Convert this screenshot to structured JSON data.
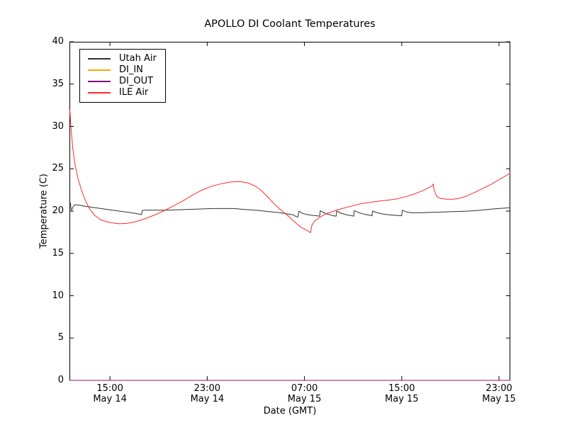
{
  "chart_data": {
    "type": "line",
    "title": "APOLLO DI Coolant Temperatures",
    "xlabel": "Date (GMT)",
    "ylabel": "Temperature (C)",
    "xlim": [
      11.67,
      47.93
    ],
    "ylim": [
      0,
      40
    ],
    "x_unit": "hours since May 14 00:00 GMT",
    "grid": false,
    "legend_position": "upper left",
    "yticks": [
      0,
      5,
      10,
      15,
      20,
      25,
      30,
      35,
      40
    ],
    "xticks": [
      {
        "pos": 15,
        "time": "15:00",
        "date": "May 14"
      },
      {
        "pos": 23,
        "time": "23:00",
        "date": "May 14"
      },
      {
        "pos": 31,
        "time": "07:00",
        "date": "May 15"
      },
      {
        "pos": 39,
        "time": "15:00",
        "date": "May 15"
      },
      {
        "pos": 47,
        "time": "23:00",
        "date": "May 15"
      }
    ],
    "series": [
      {
        "name": "Utah Air",
        "color": "#303030",
        "opacity": 1,
        "points": [
          [
            11.67,
            20.9
          ],
          [
            11.75,
            20.95
          ],
          [
            11.8,
            20.3
          ],
          [
            11.85,
            20.1
          ],
          [
            11.95,
            20.45
          ],
          [
            12.1,
            20.75
          ],
          [
            12.5,
            20.7
          ],
          [
            13.0,
            20.55
          ],
          [
            13.5,
            20.45
          ],
          [
            14.0,
            20.35
          ],
          [
            14.5,
            20.25
          ],
          [
            15.0,
            20.15
          ],
          [
            15.5,
            20.05
          ],
          [
            16.0,
            19.95
          ],
          [
            16.5,
            19.85
          ],
          [
            17.0,
            19.75
          ],
          [
            17.4,
            19.65
          ],
          [
            17.6,
            19.6
          ],
          [
            17.65,
            20.05
          ],
          [
            17.8,
            20.1
          ],
          [
            18.5,
            20.1
          ],
          [
            19.5,
            20.1
          ],
          [
            20.5,
            20.15
          ],
          [
            21.5,
            20.2
          ],
          [
            22.5,
            20.25
          ],
          [
            23.5,
            20.3
          ],
          [
            24.5,
            20.3
          ],
          [
            25.2,
            20.3
          ],
          [
            26.0,
            20.2
          ],
          [
            27.0,
            20.1
          ],
          [
            28.0,
            19.95
          ],
          [
            29.0,
            19.8
          ],
          [
            29.7,
            19.65
          ],
          [
            30.1,
            19.55
          ],
          [
            30.3,
            19.35
          ],
          [
            30.45,
            19.3
          ],
          [
            30.55,
            20.0
          ],
          [
            30.8,
            19.75
          ],
          [
            31.2,
            19.6
          ],
          [
            31.6,
            19.5
          ],
          [
            32.0,
            19.45
          ],
          [
            32.25,
            19.4
          ],
          [
            32.3,
            20.05
          ],
          [
            32.6,
            19.8
          ],
          [
            33.0,
            19.6
          ],
          [
            33.4,
            19.45
          ],
          [
            33.6,
            19.4
          ],
          [
            33.65,
            20.0
          ],
          [
            34.0,
            19.75
          ],
          [
            34.5,
            19.55
          ],
          [
            34.9,
            19.45
          ],
          [
            35.05,
            19.4
          ],
          [
            35.1,
            20.05
          ],
          [
            35.5,
            19.8
          ],
          [
            36.0,
            19.6
          ],
          [
            36.4,
            19.5
          ],
          [
            36.55,
            19.45
          ],
          [
            36.6,
            20.0
          ],
          [
            37.0,
            19.8
          ],
          [
            37.5,
            19.65
          ],
          [
            38.0,
            19.55
          ],
          [
            38.5,
            19.5
          ],
          [
            39.0,
            19.45
          ],
          [
            39.05,
            20.1
          ],
          [
            39.4,
            19.9
          ],
          [
            39.8,
            19.8
          ],
          [
            40.5,
            19.8
          ],
          [
            41.5,
            19.85
          ],
          [
            42.5,
            19.9
          ],
          [
            43.5,
            19.95
          ],
          [
            44.5,
            20.0
          ],
          [
            45.5,
            20.1
          ],
          [
            46.5,
            20.25
          ],
          [
            47.5,
            20.35
          ],
          [
            47.93,
            20.4
          ]
        ]
      },
      {
        "name": "DI_IN",
        "color": "#ffa500",
        "opacity": 0.9,
        "points": [
          [
            11.67,
            0
          ],
          [
            47.93,
            0
          ]
        ]
      },
      {
        "name": "DI_OUT",
        "color": "#800080",
        "opacity": 0.85,
        "points": [
          [
            11.67,
            0
          ],
          [
            47.93,
            0
          ]
        ]
      },
      {
        "name": "ILE Air",
        "color": "#ff2a2a",
        "opacity": 1,
        "points": [
          [
            11.7,
            32.0
          ],
          [
            11.8,
            29.8
          ],
          [
            11.95,
            27.3
          ],
          [
            12.15,
            25.3
          ],
          [
            12.4,
            23.7
          ],
          [
            12.7,
            22.3
          ],
          [
            13.0,
            21.2
          ],
          [
            13.35,
            20.2
          ],
          [
            13.75,
            19.5
          ],
          [
            14.2,
            19.0
          ],
          [
            14.7,
            18.75
          ],
          [
            15.2,
            18.6
          ],
          [
            15.8,
            18.5
          ],
          [
            16.4,
            18.55
          ],
          [
            17.0,
            18.7
          ],
          [
            17.8,
            19.05
          ],
          [
            18.6,
            19.5
          ],
          [
            19.4,
            20.0
          ],
          [
            20.2,
            20.6
          ],
          [
            21.0,
            21.2
          ],
          [
            21.8,
            21.9
          ],
          [
            22.6,
            22.5
          ],
          [
            23.4,
            22.95
          ],
          [
            24.2,
            23.25
          ],
          [
            25.0,
            23.45
          ],
          [
            25.7,
            23.5
          ],
          [
            26.3,
            23.35
          ],
          [
            26.9,
            23.0
          ],
          [
            27.4,
            22.5
          ],
          [
            27.9,
            21.8
          ],
          [
            28.4,
            21.0
          ],
          [
            29.0,
            20.2
          ],
          [
            29.6,
            19.5
          ],
          [
            30.2,
            18.7
          ],
          [
            30.7,
            18.1
          ],
          [
            31.1,
            17.8
          ],
          [
            31.35,
            17.6
          ],
          [
            31.5,
            17.45
          ],
          [
            31.6,
            18.3
          ],
          [
            31.85,
            18.85
          ],
          [
            32.3,
            19.3
          ],
          [
            32.8,
            19.7
          ],
          [
            33.4,
            20.0
          ],
          [
            34.1,
            20.3
          ],
          [
            34.9,
            20.6
          ],
          [
            35.7,
            20.9
          ],
          [
            36.5,
            21.05
          ],
          [
            37.2,
            21.2
          ],
          [
            37.9,
            21.3
          ],
          [
            38.6,
            21.45
          ],
          [
            39.3,
            21.7
          ],
          [
            40.0,
            22.0
          ],
          [
            40.7,
            22.4
          ],
          [
            41.2,
            22.75
          ],
          [
            41.5,
            23.0
          ],
          [
            41.6,
            23.2
          ],
          [
            41.65,
            22.5
          ],
          [
            41.9,
            21.7
          ],
          [
            42.2,
            21.5
          ],
          [
            42.7,
            21.4
          ],
          [
            43.2,
            21.4
          ],
          [
            43.7,
            21.5
          ],
          [
            44.3,
            21.75
          ],
          [
            45.0,
            22.2
          ],
          [
            45.7,
            22.7
          ],
          [
            46.4,
            23.2
          ],
          [
            47.1,
            23.8
          ],
          [
            47.6,
            24.2
          ],
          [
            47.93,
            24.5
          ]
        ]
      }
    ]
  }
}
